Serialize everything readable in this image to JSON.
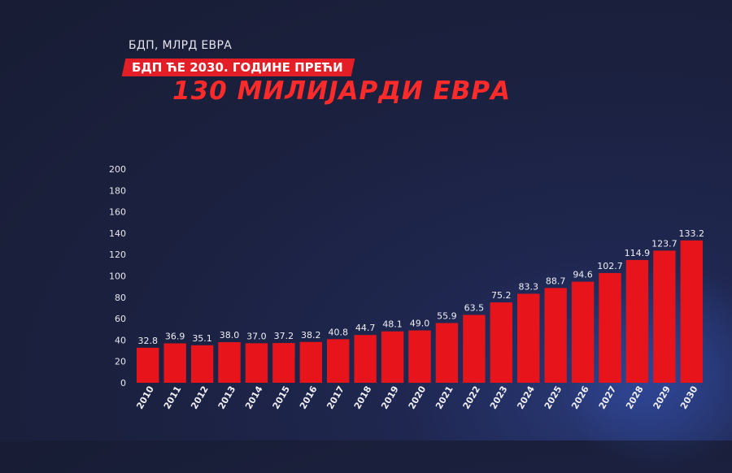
{
  "header": {
    "subtitle": "БДП, МЛРД ЕВРА",
    "banner": "БДП ЋЕ 2030. ГОДИНЕ ПРЕЋИ",
    "headline": "130 МИЛИЈАРДИ ЕВРА"
  },
  "chart_data": {
    "type": "bar",
    "title": "БДП ЋЕ 2030. ГОДИНЕ ПРЕЋИ 130 МИЛИЈАРДИ ЕВРА",
    "ylabel": "БДП, МЛРД ЕВРА",
    "categories": [
      "2010",
      "2011",
      "2012",
      "2013",
      "2014",
      "2015",
      "2016",
      "2017",
      "2018",
      "2019",
      "2020",
      "2021",
      "2022",
      "2023",
      "2024",
      "2025",
      "2026",
      "2027",
      "2028",
      "2029",
      "2030"
    ],
    "values": [
      32.8,
      36.9,
      35.1,
      38.0,
      37.0,
      37.2,
      38.2,
      40.8,
      44.7,
      48.1,
      49.0,
      55.9,
      63.5,
      75.2,
      83.3,
      88.7,
      94.6,
      102.7,
      114.9,
      123.7,
      133.2
    ],
    "value_labels": [
      "32.8",
      "36.9",
      "35.1",
      "38.0",
      "37.0",
      "37.2",
      "38.2",
      "40.8",
      "44.7",
      "48.1",
      "49.0",
      "55.9",
      "63.5",
      "75.2",
      "83.3",
      "88.7",
      "94.6",
      "102.7",
      "114.9",
      "123.7",
      "133.2"
    ],
    "ylim": [
      0,
      200
    ],
    "yticks": [
      "0",
      "20",
      "40",
      "60",
      "80",
      "100",
      "120",
      "140",
      "160",
      "180",
      "200"
    ],
    "grid": false,
    "bar_color": "#e8141c"
  }
}
